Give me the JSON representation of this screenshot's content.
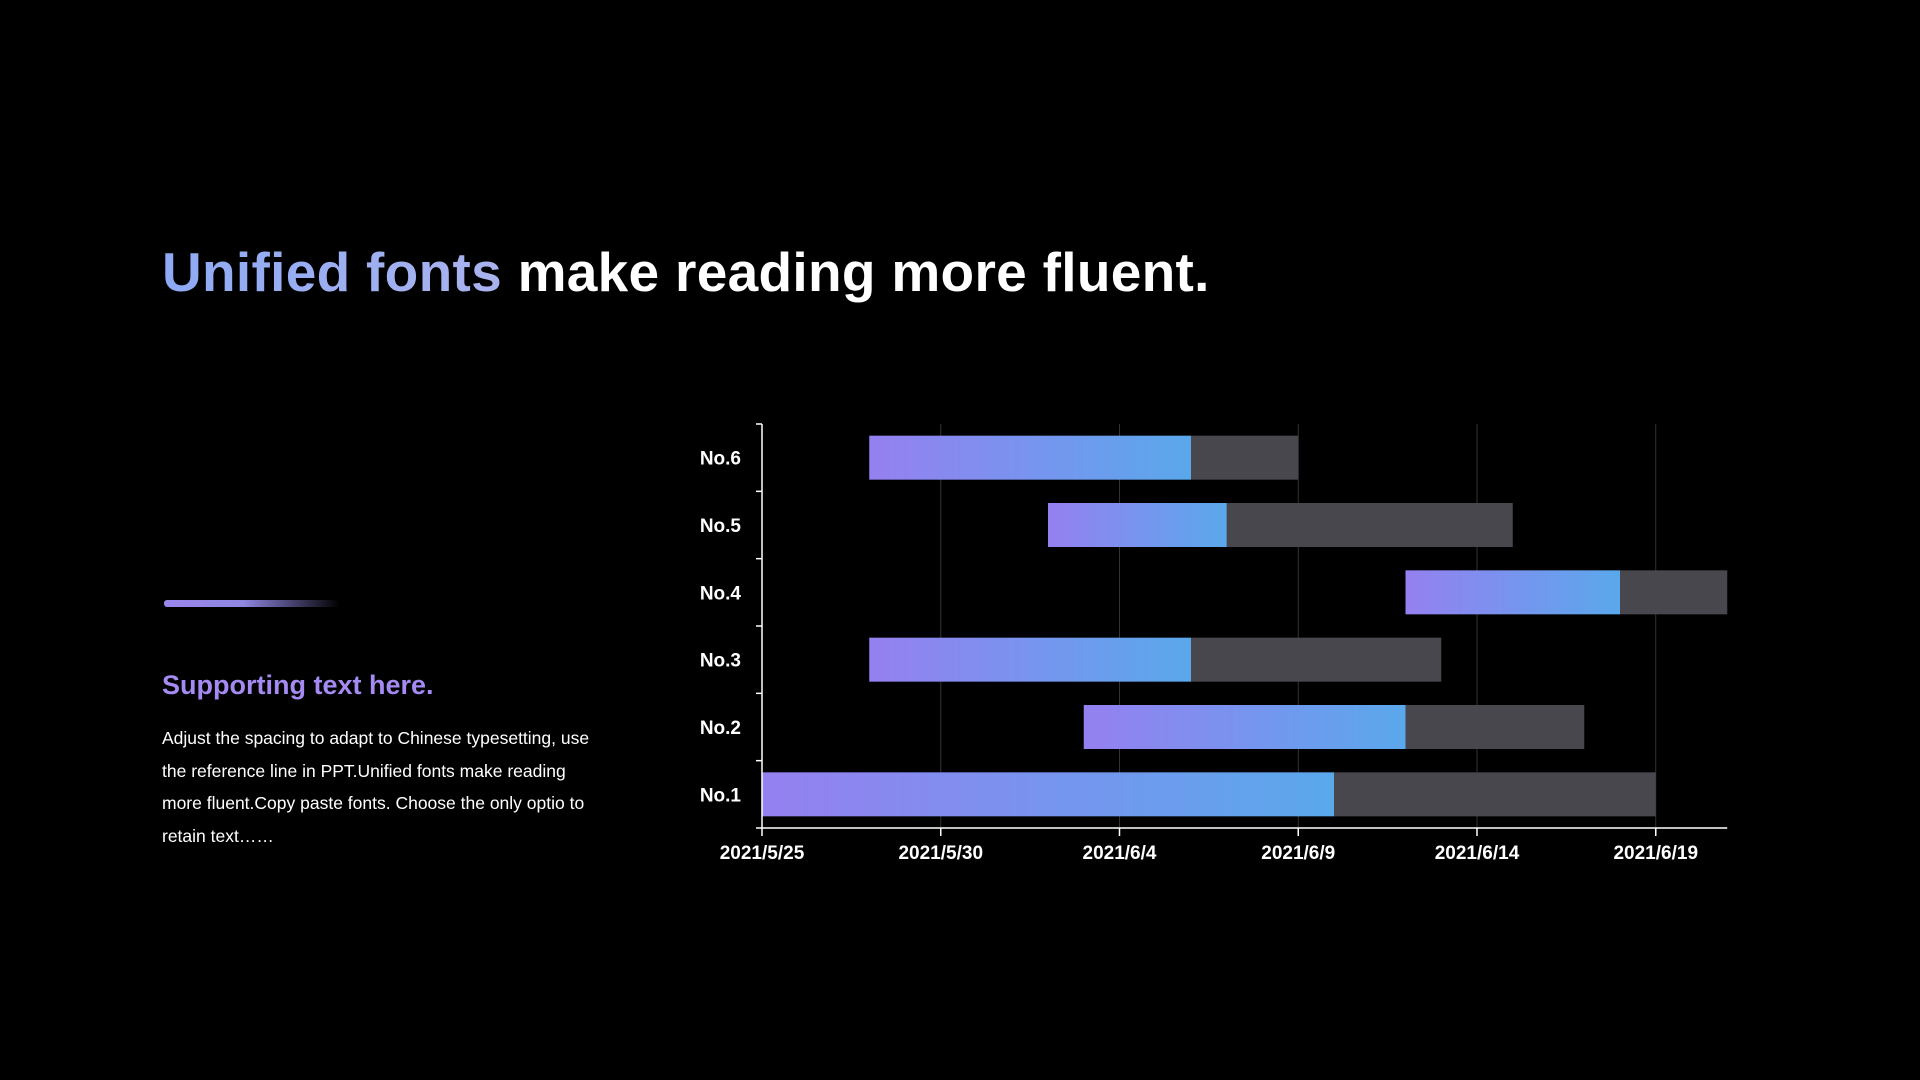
{
  "title": {
    "accent": "Unified fonts",
    "rest": "make reading more fluent."
  },
  "sidebar": {
    "heading": "Supporting text here.",
    "body": "Adjust the spacing to adapt to Chinese typesetting, use the reference line in PPT.Unified fonts make reading more fluent.Copy paste fonts. Choose the only optio to retain text……"
  },
  "colors": {
    "background": "#000000",
    "gradient_start": "#9580f0",
    "gradient_end": "#5aa8ec",
    "remaining_bar": "#48474d",
    "gridline": "#333333",
    "axis": "#ffffff",
    "accent_text": "#a58af2"
  },
  "chart_data": {
    "type": "bar",
    "orientation": "horizontal",
    "stacked": true,
    "categories": [
      "No.1",
      "No.2",
      "No.3",
      "No.4",
      "No.5",
      "No.6"
    ],
    "x_ticks": [
      "2021/5/25",
      "2021/5/30",
      "2021/6/4",
      "2021/6/9",
      "2021/6/14",
      "2021/6/19"
    ],
    "xlim": [
      "2021/5/25",
      "2021/6/21"
    ],
    "grid": "vertical",
    "legend": "none",
    "tasks": [
      {
        "category": "No.1",
        "start": "2021/5/25",
        "progress_end": "2021/6/10",
        "end": "2021/6/19"
      },
      {
        "category": "No.2",
        "start": "2021/6/3",
        "progress_end": "2021/6/12",
        "end": "2021/6/17"
      },
      {
        "category": "No.3",
        "start": "2021/5/28",
        "progress_end": "2021/6/6",
        "end": "2021/6/13"
      },
      {
        "category": "No.4",
        "start": "2021/6/12",
        "progress_end": "2021/6/18",
        "end": "2021/6/21"
      },
      {
        "category": "No.5",
        "start": "2021/6/2",
        "progress_end": "2021/6/7",
        "end": "2021/6/15"
      },
      {
        "category": "No.6",
        "start": "2021/5/28",
        "progress_end": "2021/6/6",
        "end": "2021/6/9"
      }
    ]
  }
}
